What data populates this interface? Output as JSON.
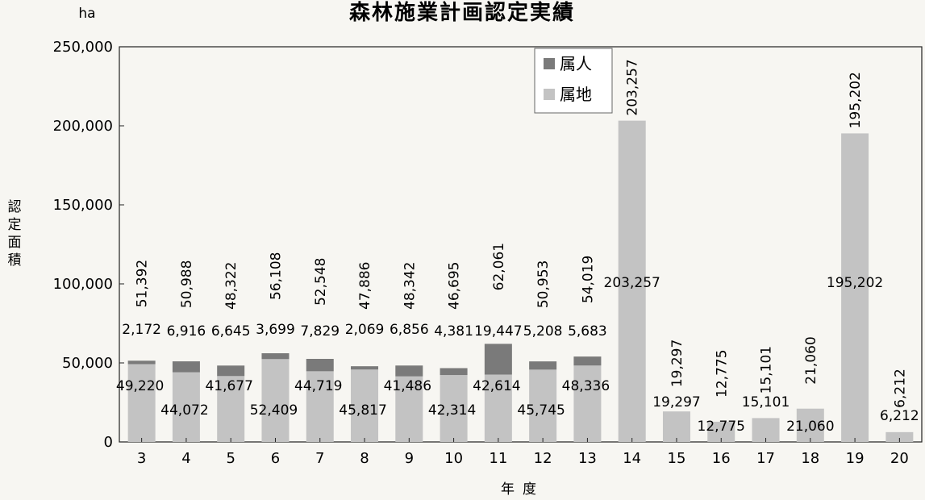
{
  "chart_data": {
    "type": "bar",
    "stacked": true,
    "title": "森林施業計画認定実績",
    "unit": "ha",
    "ylabel": "認定面積",
    "xlabel": "年度",
    "ylim": [
      0,
      250000
    ],
    "yticks": [
      "0",
      "50,000",
      "100,000",
      "150,000",
      "200,000",
      "250,000"
    ],
    "categories": [
      "3",
      "4",
      "5",
      "6",
      "7",
      "8",
      "9",
      "10",
      "11",
      "12",
      "13",
      "14",
      "15",
      "16",
      "17",
      "18",
      "19",
      "20"
    ],
    "series": [
      {
        "name": "属地",
        "color": "#c3c3c3",
        "values": [
          49220,
          44072,
          41677,
          52409,
          44719,
          45817,
          41486,
          42314,
          42614,
          45745,
          48336,
          203257,
          19297,
          12775,
          15101,
          21060,
          195202,
          6212
        ],
        "labels": [
          "49,220",
          "44,072",
          "41,677",
          "52,409",
          "44,719",
          "45,817",
          "41,486",
          "42,314",
          "42,614",
          "45,745",
          "48,336",
          "203,257",
          "19,297",
          "12,775",
          "15,101",
          "21,060",
          "195,202",
          "6,212"
        ]
      },
      {
        "name": "属人",
        "color": "#7a7a7a",
        "values": [
          2172,
          6916,
          6645,
          3699,
          7829,
          2069,
          6856,
          4381,
          19447,
          5208,
          5683,
          null,
          null,
          null,
          null,
          null,
          null,
          null
        ],
        "labels": [
          "2,172",
          "6,916",
          "6,645",
          "3,699",
          "7,829",
          "2,069",
          "6,856",
          "4,381",
          "19,447",
          "5,208",
          "5,683",
          null,
          null,
          null,
          null,
          null,
          null,
          null
        ]
      }
    ],
    "totals": {
      "values": [
        51392,
        50988,
        48322,
        56108,
        52548,
        47886,
        48342,
        46695,
        62061,
        50953,
        54019,
        203257,
        19297,
        12775,
        15101,
        21060,
        195202,
        6212
      ],
      "labels": [
        "51,392",
        "50,988",
        "48,322",
        "56,108",
        "52,548",
        "47,886",
        "48,342",
        "46,695",
        "62,061",
        "50,953",
        "54,019",
        "203,257",
        "19,297",
        "12,775",
        "15,101",
        "21,060",
        "195,202",
        "6,212"
      ]
    },
    "legend": {
      "position": "top-right-inside",
      "entries": [
        "属人",
        "属地"
      ]
    },
    "grid": false
  }
}
